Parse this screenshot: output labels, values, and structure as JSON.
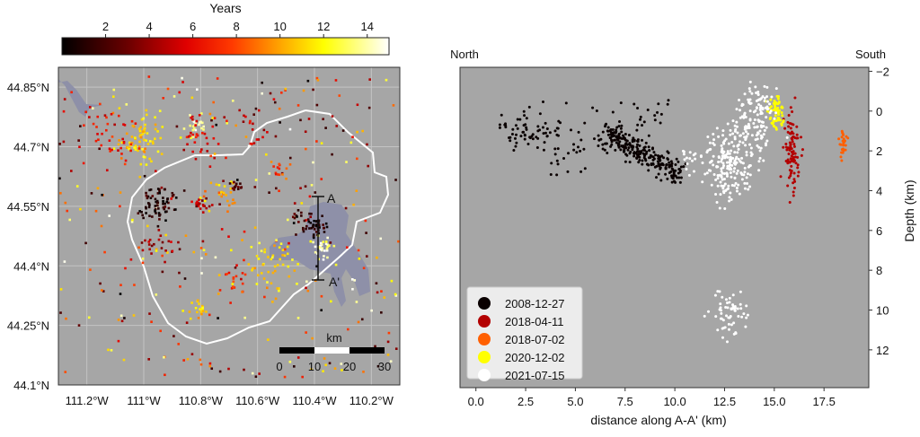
{
  "chart_data": [
    {
      "type": "scatter",
      "panel": "map",
      "colorbar": {
        "label": "Years",
        "range": [
          0,
          15
        ],
        "ticks": [
          2,
          4,
          6,
          8,
          10,
          12,
          14
        ],
        "tick_labels": [
          "2",
          "4",
          "6",
          "8",
          "10",
          "12",
          "14"
        ],
        "colormap": "hot"
      },
      "xlim": [
        -111.3,
        -110.1
      ],
      "ylim": [
        44.1,
        44.9
      ],
      "x_ticks": [
        -111.2,
        -111.0,
        -110.8,
        -110.6,
        -110.4,
        -110.2
      ],
      "x_tick_labels": [
        "111.2°W",
        "111°W",
        "110.8°W",
        "110.6°W",
        "110.4°W",
        "110.2°W"
      ],
      "y_ticks": [
        44.85,
        44.7,
        44.55,
        44.4,
        44.25,
        44.1
      ],
      "y_tick_labels": [
        "44.85°N",
        "44.7°N",
        "44.55°N",
        "44.4°N",
        "44.25°N",
        "44.1°N"
      ],
      "grid": true,
      "background": "#a6a6a6",
      "section_labels": {
        "start": "A",
        "end": "A'"
      },
      "scale_bar": {
        "unit": "km",
        "labels": [
          "0",
          "10",
          "20",
          "30"
        ]
      },
      "clusters": [
        {
          "lon": -111.0,
          "lat": 44.72,
          "years": 11,
          "count": 70,
          "spread": 0.03
        },
        {
          "lon": -111.12,
          "lat": 44.73,
          "years": 6,
          "count": 40,
          "spread": 0.04
        },
        {
          "lon": -110.82,
          "lat": 44.75,
          "years": 14,
          "count": 20,
          "spread": 0.012
        },
        {
          "lon": -110.8,
          "lat": 44.72,
          "years": 6,
          "count": 35,
          "spread": 0.03
        },
        {
          "lon": -110.62,
          "lat": 44.75,
          "years": 5,
          "count": 15,
          "spread": 0.03
        },
        {
          "lon": -110.95,
          "lat": 44.56,
          "years": 1,
          "count": 70,
          "spread": 0.022
        },
        {
          "lon": -110.8,
          "lat": 44.555,
          "years": 5,
          "count": 20,
          "spread": 0.01
        },
        {
          "lon": -110.73,
          "lat": 44.58,
          "years": 10,
          "count": 25,
          "spread": 0.02
        },
        {
          "lon": -110.68,
          "lat": 44.6,
          "years": 2,
          "count": 15,
          "spread": 0.012
        },
        {
          "lon": -110.95,
          "lat": 44.45,
          "years": 4,
          "count": 20,
          "spread": 0.025
        },
        {
          "lon": -110.8,
          "lat": 44.29,
          "years": 11,
          "count": 20,
          "spread": 0.012
        },
        {
          "lon": -110.55,
          "lat": 44.4,
          "years": 11,
          "count": 45,
          "spread": 0.04
        },
        {
          "lon": -110.39,
          "lat": 44.5,
          "years": 1,
          "count": 45,
          "spread": 0.014
        },
        {
          "lon": -110.37,
          "lat": 44.45,
          "years": 14,
          "count": 30,
          "spread": 0.015
        },
        {
          "lon": -110.68,
          "lat": 44.37,
          "years": 7,
          "count": 20,
          "spread": 0.02
        },
        {
          "lon": -110.47,
          "lat": 44.52,
          "years": 2,
          "count": 15,
          "spread": 0.015
        },
        {
          "lon": -110.52,
          "lat": 44.64,
          "years": 8,
          "count": 12,
          "spread": 0.012
        }
      ]
    },
    {
      "type": "scatter",
      "panel": "cross-section",
      "xlabel": "distance along A-A' (km)",
      "ylabel": "Depth (km)",
      "left_label": "North",
      "right_label": "South",
      "xlim": [
        -0.8,
        19.75
      ],
      "ylim": [
        13.9,
        -2.2
      ],
      "y_inverted": true,
      "x_ticks": [
        0,
        2.5,
        5,
        7.5,
        10,
        12.5,
        15,
        17.5
      ],
      "x_tick_labels": [
        "0.0",
        "2.5",
        "5.0",
        "7.5",
        "10.0",
        "12.5",
        "15.0",
        "17.5"
      ],
      "y_ticks": [
        -2,
        0,
        2,
        4,
        6,
        8,
        10,
        12
      ],
      "y_tick_labels": [
        "−2",
        "0",
        "2",
        "4",
        "6",
        "8",
        "10",
        "12"
      ],
      "y_axis_side": "right",
      "background": "#a6a6a6",
      "legend": {
        "placement": "lower-left"
      },
      "series": [
        {
          "name": "2008-12-27",
          "color": "#0a0000",
          "clusters": [
            {
              "x": 2.5,
              "y": 1.0,
              "sx": 0.8,
              "sy": 0.6,
              "n": 60
            },
            {
              "x": 4.5,
              "y": 2.0,
              "sx": 0.6,
              "sy": 0.9,
              "n": 30
            },
            {
              "x": 8.0,
              "y": 0.5,
              "sx": 1.0,
              "sy": 0.6,
              "n": 30
            }
          ],
          "bands": [
            {
              "x0": 6.5,
              "y0": 1.2,
              "x1": 10.2,
              "y1": 3.1,
              "spread": 0.3,
              "n": 260
            }
          ]
        },
        {
          "name": "2018-04-11",
          "color": "#b30000",
          "clusters": [
            {
              "x": 15.9,
              "y": 2.0,
              "sx": 0.2,
              "sy": 0.9,
              "n": 90
            }
          ]
        },
        {
          "name": "2018-07-02",
          "color": "#ff5f00",
          "clusters": [
            {
              "x": 18.4,
              "y": 1.7,
              "sx": 0.12,
              "sy": 0.4,
              "n": 25
            }
          ]
        },
        {
          "name": "2020-12-02",
          "color": "#ffff00",
          "clusters": [
            {
              "x": 15.1,
              "y": 0.1,
              "sx": 0.2,
              "sy": 0.45,
              "n": 60
            }
          ]
        },
        {
          "name": "2021-07-15",
          "color": "#ffffff",
          "clusters": [
            {
              "x": 12.8,
              "y": 2.6,
              "sx": 0.6,
              "sy": 0.9,
              "n": 200
            },
            {
              "x": 14.0,
              "y": 0.4,
              "sx": 0.6,
              "sy": 0.8,
              "n": 130
            },
            {
              "x": 12.8,
              "y": 10.2,
              "sx": 0.45,
              "sy": 0.6,
              "n": 60
            },
            {
              "x": 10.8,
              "y": 2.5,
              "sx": 0.2,
              "sy": 0.3,
              "n": 15
            }
          ]
        }
      ]
    }
  ]
}
